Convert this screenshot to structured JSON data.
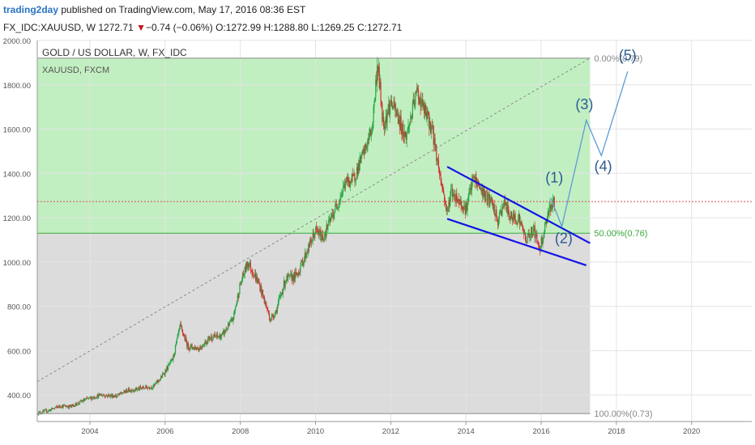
{
  "header": {
    "brand": "trading2day",
    "published": "published on TradingView.com, May 17, 2016 08:36 EST",
    "symbol": "FX_IDC:XAUUSD, W",
    "price": "1272.71",
    "change_arrow": "▼",
    "change": "−0.74 (−0.06%)",
    "o_label": "O:",
    "o_value": "1272.99",
    "h_label": "H:",
    "h_value": "1288.80",
    "l_label": "L:",
    "l_value": "1269.25",
    "c_label": "C:",
    "c_value": "1272.71"
  },
  "colors": {
    "green_zone": "#c2efc2",
    "gray_zone": "#dcdcdc",
    "candle_up": "#26a644",
    "candle_down": "#d0312d",
    "channel": "#1414e6",
    "projection": "#5b9bd5",
    "wave_label": "#2b5a8f",
    "price_line": "#d94a4a"
  },
  "chart_data": {
    "type": "candlestick",
    "title": "GOLD / US DOLLAR, W, FX_IDC",
    "subtitle": "XAUUSD, FXCM",
    "ylim": [
      280,
      2000
    ],
    "xlim": [
      2002.6,
      2021.6
    ],
    "y_ticks": [
      "2000.00",
      "1800.00",
      "1600.00",
      "1400.00",
      "1200.00",
      "1000.00",
      "800.00",
      "600.00",
      "400.00"
    ],
    "x_ticks": [
      "2004",
      "2006",
      "2008",
      "2010",
      "2012",
      "2014",
      "2016",
      "2018",
      "2020"
    ],
    "price_series": [
      [
        2002.6,
        318
      ],
      [
        2002.9,
        330
      ],
      [
        2003.2,
        350
      ],
      [
        2003.5,
        348
      ],
      [
        2003.9,
        380
      ],
      [
        2004.3,
        400
      ],
      [
        2004.7,
        395
      ],
      [
        2005.0,
        420
      ],
      [
        2005.3,
        428
      ],
      [
        2005.7,
        440
      ],
      [
        2005.9,
        480
      ],
      [
        2006.2,
        560
      ],
      [
        2006.4,
        710
      ],
      [
        2006.6,
        620
      ],
      [
        2006.9,
        610
      ],
      [
        2007.2,
        660
      ],
      [
        2007.5,
        665
      ],
      [
        2007.8,
        740
      ],
      [
        2008.0,
        900
      ],
      [
        2008.2,
        1000
      ],
      [
        2008.5,
        900
      ],
      [
        2008.8,
        740
      ],
      [
        2008.95,
        780
      ],
      [
        2009.2,
        920
      ],
      [
        2009.5,
        940
      ],
      [
        2009.8,
        1060
      ],
      [
        2010.0,
        1140
      ],
      [
        2010.2,
        1110
      ],
      [
        2010.5,
        1230
      ],
      [
        2010.8,
        1360
      ],
      [
        2011.0,
        1370
      ],
      [
        2011.3,
        1500
      ],
      [
        2011.5,
        1600
      ],
      [
        2011.65,
        1900
      ],
      [
        2011.8,
        1620
      ],
      [
        2012.0,
        1720
      ],
      [
        2012.2,
        1650
      ],
      [
        2012.4,
        1560
      ],
      [
        2012.7,
        1770
      ],
      [
        2012.85,
        1700
      ],
      [
        2013.1,
        1600
      ],
      [
        2013.3,
        1400
      ],
      [
        2013.5,
        1220
      ],
      [
        2013.6,
        1320
      ],
      [
        2013.8,
        1280
      ],
      [
        2014.0,
        1240
      ],
      [
        2014.2,
        1380
      ],
      [
        2014.5,
        1300
      ],
      [
        2014.7,
        1260
      ],
      [
        2014.85,
        1180
      ],
      [
        2015.0,
        1270
      ],
      [
        2015.2,
        1200
      ],
      [
        2015.4,
        1200
      ],
      [
        2015.6,
        1100
      ],
      [
        2015.8,
        1150
      ],
      [
        2015.95,
        1060
      ],
      [
        2016.05,
        1120
      ],
      [
        2016.2,
        1240
      ],
      [
        2016.35,
        1270
      ]
    ],
    "fib_levels": [
      {
        "label": "0.00%(0.79)",
        "price": 1920
      },
      {
        "label": "50.00%(0.76)",
        "price": 1130
      },
      {
        "label": "100.00%(0.73)",
        "price": 316
      }
    ],
    "fib_range_x": [
      2002.6,
      2017.3
    ],
    "current_price": 1272.71,
    "trend_line": [
      [
        2002.6,
        460
      ],
      [
        2017.3,
        1920
      ]
    ],
    "channel_lines": [
      [
        [
          2013.5,
          1430
        ],
        [
          2017.3,
          1085
        ]
      ],
      [
        [
          2013.5,
          1195
        ],
        [
          2017.2,
          985
        ]
      ]
    ],
    "projection_path": [
      [
        2016.25,
        1290
      ],
      [
        2016.55,
        1160
      ],
      [
        2017.2,
        1640
      ],
      [
        2017.6,
        1480
      ],
      [
        2018.3,
        1860
      ]
    ],
    "wave_labels": [
      {
        "text": "(1)",
        "x": 2016.35,
        "y": 1360
      },
      {
        "text": "(2)",
        "x": 2016.6,
        "y": 1085
      },
      {
        "text": "(3)",
        "x": 2017.15,
        "y": 1690
      },
      {
        "text": "(4)",
        "x": 2017.65,
        "y": 1410
      },
      {
        "text": "(5)",
        "x": 2018.3,
        "y": 1910
      }
    ]
  }
}
